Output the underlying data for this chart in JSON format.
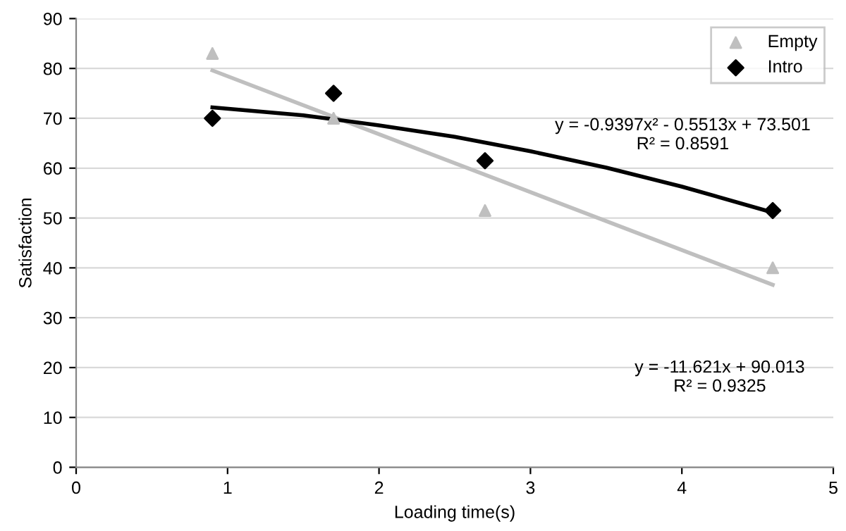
{
  "chart_data": {
    "type": "scatter",
    "xlabel": "Loading time(s)",
    "ylabel": "Satisfaction",
    "xlim": [
      0,
      5
    ],
    "xticks": [
      0,
      1,
      2,
      3,
      4,
      5
    ],
    "ylim": [
      0,
      90
    ],
    "yticks": [
      0,
      10,
      20,
      30,
      40,
      50,
      60,
      70,
      80,
      90
    ],
    "grid": "y",
    "legend": "top right",
    "series": [
      {
        "name": "Empty",
        "marker": "triangle",
        "color": "#bfbfbf",
        "x": [
          0.9,
          1.7,
          2.7,
          4.6
        ],
        "values": [
          83,
          70,
          51.5,
          40
        ]
      },
      {
        "name": "Intro",
        "marker": "diamond",
        "color": "#000000",
        "x": [
          0.9,
          1.7,
          2.7,
          4.6
        ],
        "values": [
          70,
          75,
          61.5,
          51.5
        ]
      },
      {
        "type": "line",
        "color": "#bfbfbf",
        "x": [
          0.9,
          4.6
        ],
        "values": [
          79.6,
          36.6
        ]
      },
      {
        "type": "line",
        "color": "#000000",
        "x": [
          0.9,
          1.5,
          2,
          2.5,
          3,
          3.5,
          4,
          4.6
        ],
        "values": [
          72.2,
          70.6,
          68.6,
          66.3,
          63.4,
          60.1,
          56.3,
          51.1
        ]
      }
    ],
    "annotations": [
      "y = -0.9397x² - 0.5513x + 73.501\nR² = 0.8591",
      "y = -11.621x + 90.013\nR² = 0.9325"
    ]
  }
}
